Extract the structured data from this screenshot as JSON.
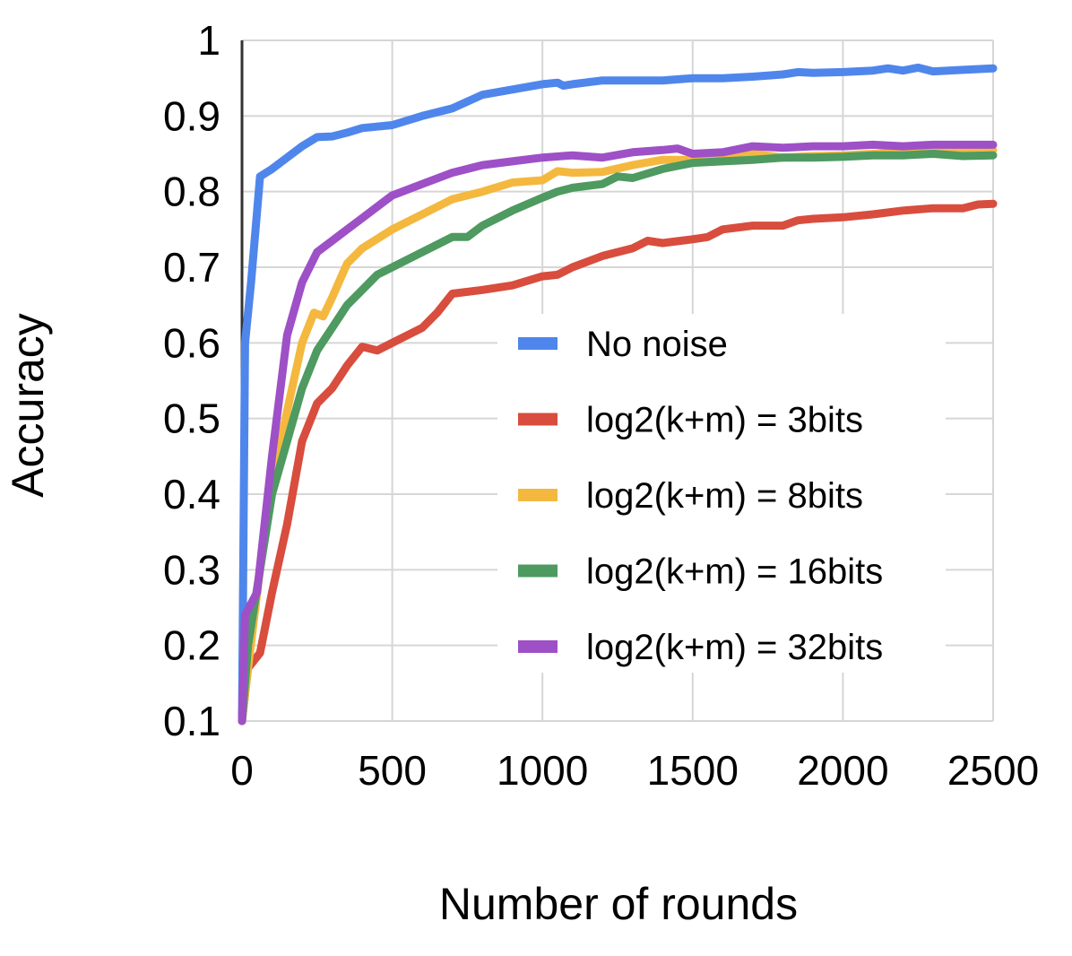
{
  "chart_data": {
    "type": "line",
    "title": "",
    "xlabel": "Number of rounds",
    "ylabel": "Accuracy",
    "xlim": [
      0,
      2500
    ],
    "ylim": [
      0.1,
      1
    ],
    "xticks": [
      "0",
      "500",
      "1000",
      "1500",
      "2000",
      "2500"
    ],
    "yticks": [
      "0.1",
      "0.2",
      "0.3",
      "0.4",
      "0.5",
      "0.6",
      "0.7",
      "0.8",
      "0.9",
      "1"
    ],
    "grid": true,
    "legend_position": "center-right",
    "series": [
      {
        "name": "No noise",
        "color": "#4f86ec",
        "points": [
          [
            0,
            0.1
          ],
          [
            10,
            0.6
          ],
          [
            30,
            0.68
          ],
          [
            60,
            0.82
          ],
          [
            100,
            0.83
          ],
          [
            150,
            0.845
          ],
          [
            200,
            0.86
          ],
          [
            250,
            0.872
          ],
          [
            300,
            0.873
          ],
          [
            350,
            0.878
          ],
          [
            400,
            0.884
          ],
          [
            500,
            0.888
          ],
          [
            600,
            0.9
          ],
          [
            700,
            0.91
          ],
          [
            800,
            0.928
          ],
          [
            900,
            0.935
          ],
          [
            1000,
            0.942
          ],
          [
            1050,
            0.944
          ],
          [
            1070,
            0.94
          ],
          [
            1100,
            0.942
          ],
          [
            1200,
            0.947
          ],
          [
            1300,
            0.947
          ],
          [
            1400,
            0.947
          ],
          [
            1500,
            0.95
          ],
          [
            1600,
            0.95
          ],
          [
            1700,
            0.952
          ],
          [
            1800,
            0.955
          ],
          [
            1850,
            0.958
          ],
          [
            1900,
            0.957
          ],
          [
            2000,
            0.958
          ],
          [
            2100,
            0.96
          ],
          [
            2150,
            0.963
          ],
          [
            2200,
            0.96
          ],
          [
            2250,
            0.964
          ],
          [
            2300,
            0.959
          ],
          [
            2400,
            0.961
          ],
          [
            2500,
            0.963
          ]
        ]
      },
      {
        "name": "log2(k+m) = 3bits",
        "color": "#d84d3d",
        "points": [
          [
            0,
            0.1
          ],
          [
            20,
            0.17
          ],
          [
            60,
            0.19
          ],
          [
            100,
            0.27
          ],
          [
            150,
            0.36
          ],
          [
            200,
            0.47
          ],
          [
            250,
            0.52
          ],
          [
            300,
            0.54
          ],
          [
            350,
            0.57
          ],
          [
            400,
            0.595
          ],
          [
            450,
            0.59
          ],
          [
            500,
            0.6
          ],
          [
            600,
            0.62
          ],
          [
            650,
            0.64
          ],
          [
            700,
            0.665
          ],
          [
            800,
            0.67
          ],
          [
            900,
            0.676
          ],
          [
            1000,
            0.688
          ],
          [
            1050,
            0.69
          ],
          [
            1100,
            0.7
          ],
          [
            1200,
            0.715
          ],
          [
            1300,
            0.725
          ],
          [
            1350,
            0.735
          ],
          [
            1400,
            0.732
          ],
          [
            1500,
            0.737
          ],
          [
            1550,
            0.74
          ],
          [
            1600,
            0.75
          ],
          [
            1700,
            0.755
          ],
          [
            1800,
            0.755
          ],
          [
            1850,
            0.762
          ],
          [
            1900,
            0.764
          ],
          [
            2000,
            0.766
          ],
          [
            2100,
            0.77
          ],
          [
            2200,
            0.775
          ],
          [
            2300,
            0.778
          ],
          [
            2400,
            0.778
          ],
          [
            2450,
            0.783
          ],
          [
            2500,
            0.784
          ]
        ]
      },
      {
        "name": "log2(k+m) = 8bits",
        "color": "#f4b83f",
        "points": [
          [
            0,
            0.1
          ],
          [
            20,
            0.17
          ],
          [
            60,
            0.3
          ],
          [
            100,
            0.41
          ],
          [
            150,
            0.51
          ],
          [
            200,
            0.6
          ],
          [
            240,
            0.64
          ],
          [
            270,
            0.635
          ],
          [
            300,
            0.66
          ],
          [
            350,
            0.705
          ],
          [
            400,
            0.725
          ],
          [
            500,
            0.75
          ],
          [
            600,
            0.77
          ],
          [
            700,
            0.79
          ],
          [
            800,
            0.8
          ],
          [
            900,
            0.812
          ],
          [
            1000,
            0.815
          ],
          [
            1050,
            0.827
          ],
          [
            1100,
            0.825
          ],
          [
            1200,
            0.826
          ],
          [
            1300,
            0.835
          ],
          [
            1400,
            0.842
          ],
          [
            1500,
            0.842
          ],
          [
            1600,
            0.847
          ],
          [
            1700,
            0.85
          ],
          [
            1800,
            0.845
          ],
          [
            1900,
            0.847
          ],
          [
            2000,
            0.848
          ],
          [
            2100,
            0.85
          ],
          [
            2200,
            0.852
          ],
          [
            2300,
            0.852
          ],
          [
            2400,
            0.854
          ],
          [
            2500,
            0.855
          ]
        ]
      },
      {
        "name": "log2(k+m) = 16bits",
        "color": "#4e9a60",
        "points": [
          [
            0,
            0.1
          ],
          [
            20,
            0.2
          ],
          [
            60,
            0.3
          ],
          [
            100,
            0.4
          ],
          [
            150,
            0.47
          ],
          [
            200,
            0.54
          ],
          [
            250,
            0.59
          ],
          [
            300,
            0.62
          ],
          [
            350,
            0.65
          ],
          [
            400,
            0.67
          ],
          [
            450,
            0.69
          ],
          [
            500,
            0.7
          ],
          [
            600,
            0.72
          ],
          [
            700,
            0.74
          ],
          [
            750,
            0.74
          ],
          [
            800,
            0.755
          ],
          [
            900,
            0.775
          ],
          [
            1000,
            0.792
          ],
          [
            1050,
            0.8
          ],
          [
            1100,
            0.805
          ],
          [
            1200,
            0.81
          ],
          [
            1250,
            0.82
          ],
          [
            1300,
            0.818
          ],
          [
            1400,
            0.83
          ],
          [
            1500,
            0.838
          ],
          [
            1600,
            0.84
          ],
          [
            1700,
            0.842
          ],
          [
            1800,
            0.845
          ],
          [
            1900,
            0.845
          ],
          [
            2000,
            0.846
          ],
          [
            2100,
            0.848
          ],
          [
            2200,
            0.848
          ],
          [
            2300,
            0.85
          ],
          [
            2400,
            0.847
          ],
          [
            2500,
            0.848
          ]
        ]
      },
      {
        "name": "log2(k+m) = 32bits",
        "color": "#9e50c7",
        "points": [
          [
            0,
            0.1
          ],
          [
            10,
            0.24
          ],
          [
            50,
            0.27
          ],
          [
            100,
            0.45
          ],
          [
            150,
            0.61
          ],
          [
            200,
            0.68
          ],
          [
            250,
            0.72
          ],
          [
            300,
            0.735
          ],
          [
            350,
            0.75
          ],
          [
            400,
            0.765
          ],
          [
            500,
            0.795
          ],
          [
            600,
            0.81
          ],
          [
            700,
            0.825
          ],
          [
            800,
            0.835
          ],
          [
            900,
            0.84
          ],
          [
            1000,
            0.845
          ],
          [
            1100,
            0.848
          ],
          [
            1200,
            0.845
          ],
          [
            1300,
            0.852
          ],
          [
            1400,
            0.855
          ],
          [
            1450,
            0.857
          ],
          [
            1500,
            0.85
          ],
          [
            1600,
            0.852
          ],
          [
            1700,
            0.86
          ],
          [
            1800,
            0.858
          ],
          [
            1900,
            0.86
          ],
          [
            2000,
            0.86
          ],
          [
            2100,
            0.862
          ],
          [
            2200,
            0.86
          ],
          [
            2300,
            0.862
          ],
          [
            2400,
            0.862
          ],
          [
            2500,
            0.862
          ]
        ]
      }
    ]
  }
}
